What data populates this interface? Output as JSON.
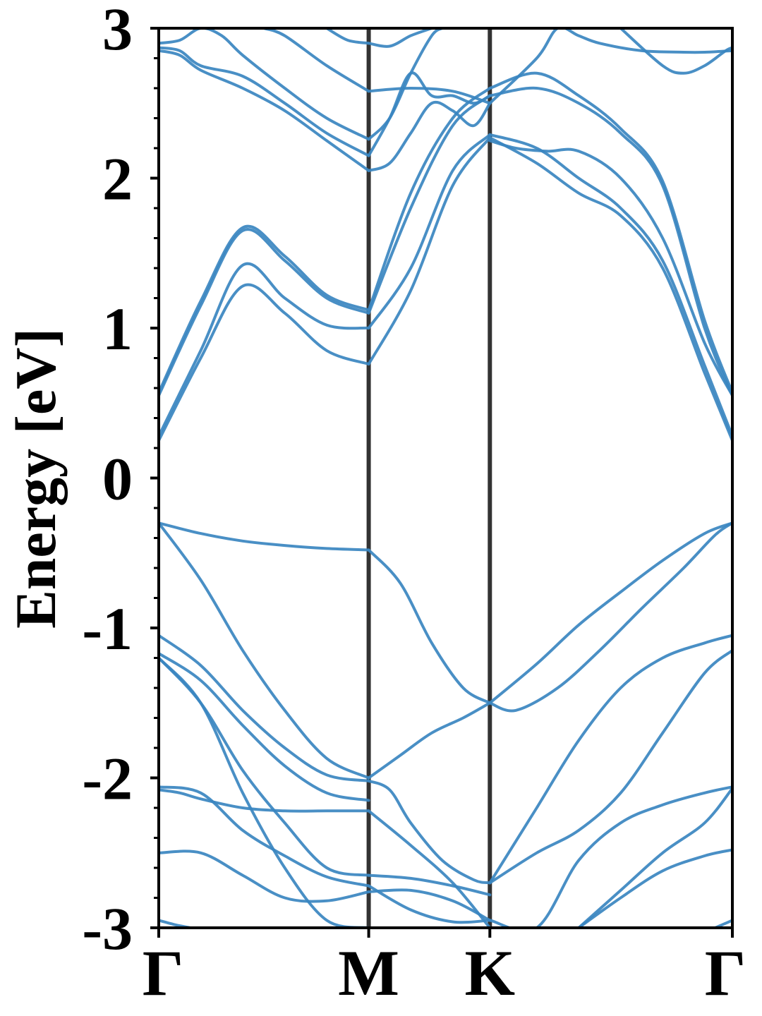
{
  "chart_data": {
    "type": "line",
    "ylabel": "Energy [eV]",
    "ylim": [
      -3,
      3
    ],
    "xlim": [
      0,
      2.732
    ],
    "yticks": [
      3,
      2,
      1,
      0,
      -1,
      -2,
      -3
    ],
    "ytick_labels": [
      "3",
      "2",
      "1",
      "0",
      "-1",
      "-2",
      "-3"
    ],
    "xticks": [
      {
        "pos": 0,
        "label": "Γ"
      },
      {
        "pos": 1,
        "label": "M"
      },
      {
        "pos": 1.577,
        "label": "K"
      },
      {
        "pos": 2.732,
        "label": "Γ"
      }
    ],
    "line_color": "#3a86c0",
    "vline_color": "#333333",
    "series": [
      {
        "x": [
          0,
          0.2,
          0.4,
          0.6,
          0.8,
          1
        ],
        "y": [
          -0.3,
          -0.37,
          -0.42,
          -0.45,
          -0.47,
          -0.48
        ]
      },
      {
        "x": [
          1,
          1.15,
          1.3,
          1.45,
          1.577
        ],
        "y": [
          -0.48,
          -0.7,
          -1.1,
          -1.4,
          -1.5
        ]
      },
      {
        "x": [
          1.577,
          1.8,
          2.0,
          2.2,
          2.4,
          2.6,
          2.732
        ],
        "y": [
          -1.5,
          -1.24,
          -0.98,
          -0.76,
          -0.55,
          -0.37,
          -0.3
        ]
      },
      {
        "x": [
          1.577,
          1.7,
          1.9,
          2.1,
          2.3,
          2.5,
          2.65,
          2.732
        ],
        "y": [
          -1.5,
          -1.55,
          -1.4,
          -1.15,
          -0.87,
          -0.6,
          -0.38,
          -0.3
        ]
      },
      {
        "x": [
          0,
          0.2,
          0.4,
          0.6,
          0.8,
          1
        ],
        "y": [
          -0.3,
          -0.68,
          -1.15,
          -1.55,
          -1.87,
          -2.0
        ]
      },
      {
        "x": [
          1,
          1.15,
          1.3,
          1.45,
          1.577
        ],
        "y": [
          -2.0,
          -1.85,
          -1.7,
          -1.6,
          -1.5
        ]
      },
      {
        "x": [
          0,
          0.2,
          0.4,
          0.6,
          0.8,
          1
        ],
        "y": [
          -1.05,
          -1.25,
          -1.55,
          -1.8,
          -1.98,
          -2.02
        ]
      },
      {
        "x": [
          0,
          0.2,
          0.4,
          0.6,
          0.8,
          1
        ],
        "y": [
          -1.17,
          -1.35,
          -1.65,
          -1.92,
          -2.1,
          -2.15
        ]
      },
      {
        "x": [
          1,
          1.1,
          1.2,
          1.35,
          1.5,
          1.577
        ],
        "y": [
          -2.02,
          -2.08,
          -2.3,
          -2.55,
          -2.68,
          -2.7
        ]
      },
      {
        "x": [
          1.577,
          1.8,
          2.0,
          2.2,
          2.4,
          2.6,
          2.732
        ],
        "y": [
          -2.7,
          -2.2,
          -1.75,
          -1.4,
          -1.2,
          -1.1,
          -1.05
        ]
      },
      {
        "x": [
          1.577,
          1.8,
          2.0,
          2.2,
          2.4,
          2.6,
          2.732
        ],
        "y": [
          -2.7,
          -2.5,
          -2.35,
          -2.1,
          -1.7,
          -1.3,
          -1.15
        ]
      },
      {
        "x": [
          0,
          0.2,
          0.4,
          0.6,
          0.8,
          1
        ],
        "y": [
          -1.2,
          -1.5,
          -1.95,
          -2.3,
          -2.6,
          -2.65
        ]
      },
      {
        "x": [
          1,
          1.2,
          1.4,
          1.577
        ],
        "y": [
          -2.65,
          -2.67,
          -2.72,
          -2.78
        ]
      },
      {
        "x": [
          0,
          0.1,
          0.2,
          0.4,
          0.6,
          0.8,
          1
        ],
        "y": [
          -2.08,
          -2.1,
          -2.14,
          -2.2,
          -2.22,
          -2.22,
          -2.22
        ]
      },
      {
        "x": [
          1,
          1.2,
          1.4,
          1.577
        ],
        "y": [
          -2.22,
          -2.45,
          -2.7,
          -3.0
        ]
      },
      {
        "x": [
          0,
          0.2,
          0.4,
          0.6,
          0.8,
          1
        ],
        "y": [
          -1.2,
          -1.5,
          -2.1,
          -2.6,
          -2.95,
          -3.0
        ]
      },
      {
        "x": [
          0,
          0.2,
          0.4,
          0.6,
          0.8,
          1
        ],
        "y": [
          -2.06,
          -2.1,
          -2.35,
          -2.52,
          -2.66,
          -2.72
        ]
      },
      {
        "x": [
          1,
          1.2,
          1.4,
          1.577
        ],
        "y": [
          -2.72,
          -2.88,
          -2.96,
          -2.95
        ]
      },
      {
        "x": [
          0,
          0.2,
          0.4,
          0.6,
          0.8,
          1
        ],
        "y": [
          -2.5,
          -2.5,
          -2.65,
          -2.8,
          -2.82,
          -2.76
        ]
      },
      {
        "x": [
          1,
          1.2,
          1.4,
          1.577
        ],
        "y": [
          -2.76,
          -2.75,
          -2.82,
          -2.95
        ]
      },
      {
        "x": [
          1.577,
          1.8,
          2.0,
          2.2,
          2.4,
          2.6,
          2.732
        ],
        "y": [
          -2.95,
          -3.0,
          -2.55,
          -2.3,
          -2.18,
          -2.1,
          -2.06
        ]
      },
      {
        "x": [
          2.0,
          2.2,
          2.4,
          2.6,
          2.732
        ],
        "y": [
          -3.0,
          -2.8,
          -2.62,
          -2.52,
          -2.48
        ]
      },
      {
        "x": [
          2.0,
          2.2,
          2.4,
          2.6,
          2.732
        ],
        "y": [
          -3.0,
          -2.75,
          -2.5,
          -2.3,
          -2.07
        ]
      },
      {
        "x": [
          0,
          0.2,
          0.4,
          0.6,
          0.8,
          1
        ],
        "y": [
          0.25,
          0.8,
          1.28,
          1.1,
          0.85,
          0.76
        ]
      },
      {
        "x": [
          1,
          1.2,
          1.4,
          1.577
        ],
        "y": [
          0.76,
          1.25,
          1.95,
          2.27
        ]
      },
      {
        "x": [
          0,
          0.2,
          0.4,
          0.6,
          0.8,
          1
        ],
        "y": [
          0.28,
          0.85,
          1.42,
          1.2,
          1.02,
          1.0
        ]
      },
      {
        "x": [
          1,
          1.2,
          1.4,
          1.577
        ],
        "y": [
          1.0,
          1.4,
          2.05,
          2.29
        ]
      },
      {
        "x": [
          0,
          0.2,
          0.4,
          0.6,
          0.8,
          1
        ],
        "y": [
          0.55,
          1.15,
          1.65,
          1.45,
          1.2,
          1.1
        ]
      },
      {
        "x": [
          1,
          1.2,
          1.4,
          1.577
        ],
        "y": [
          1.1,
          1.8,
          2.35,
          2.55
        ]
      },
      {
        "x": [
          0,
          0.2,
          0.4,
          0.6,
          0.8,
          1
        ],
        "y": [
          0.57,
          1.18,
          1.67,
          1.48,
          1.22,
          1.12
        ]
      },
      {
        "x": [
          1,
          1.2,
          1.4,
          1.577
        ],
        "y": [
          1.12,
          1.9,
          2.4,
          2.6
        ]
      },
      {
        "x": [
          1.577,
          1.8,
          2.0,
          2.2,
          2.4,
          2.6,
          2.732
        ],
        "y": [
          2.27,
          2.1,
          1.9,
          1.75,
          1.4,
          0.7,
          0.25
        ]
      },
      {
        "x": [
          1.577,
          1.8,
          2.0,
          2.2,
          2.4,
          2.6,
          2.732
        ],
        "y": [
          2.29,
          2.2,
          2.0,
          1.8,
          1.45,
          0.75,
          0.28
        ]
      },
      {
        "x": [
          1.577,
          1.8,
          2.0,
          2.2,
          2.4,
          2.6,
          2.732
        ],
        "y": [
          2.55,
          2.6,
          2.5,
          2.3,
          1.95,
          1.0,
          0.55
        ]
      },
      {
        "x": [
          1.577,
          1.8,
          2.0,
          2.2,
          2.4,
          2.6,
          2.732
        ],
        "y": [
          2.6,
          2.7,
          2.55,
          2.33,
          1.98,
          1.05,
          0.57
        ]
      },
      {
        "x": [
          1.577,
          1.7,
          1.85,
          2.0,
          2.2,
          2.4,
          2.6,
          2.732
        ],
        "y": [
          2.25,
          2.2,
          2.18,
          2.18,
          2.0,
          1.6,
          0.9,
          0.55
        ]
      },
      {
        "x": [
          0,
          0.1,
          0.2,
          0.4,
          0.6,
          0.8,
          1
        ],
        "y": [
          2.85,
          2.82,
          2.72,
          2.6,
          2.45,
          2.25,
          2.05
        ]
      },
      {
        "x": [
          1,
          1.1,
          1.2,
          1.3,
          1.4,
          1.5,
          1.577
        ],
        "y": [
          2.05,
          2.1,
          2.3,
          2.5,
          2.45,
          2.35,
          2.5
        ]
      },
      {
        "x": [
          0,
          0.1,
          0.2,
          0.4,
          0.6,
          0.8,
          1
        ],
        "y": [
          2.87,
          2.85,
          2.75,
          2.68,
          2.5,
          2.3,
          2.15
        ]
      },
      {
        "x": [
          1,
          1.1,
          1.2,
          1.3,
          1.4,
          1.5,
          1.577
        ],
        "y": [
          2.15,
          2.4,
          2.7,
          2.55,
          2.55,
          2.5,
          2.55
        ]
      },
      {
        "x": [
          0,
          0.1,
          0.2,
          0.3,
          0.4,
          0.6,
          0.8,
          1
        ],
        "y": [
          2.9,
          2.92,
          3.0,
          2.95,
          2.82,
          2.6,
          2.4,
          2.26
        ]
      },
      {
        "x": [
          1,
          1.1,
          1.2,
          1.3,
          1.35
        ],
        "y": [
          2.26,
          2.4,
          2.7,
          2.95,
          3.0
        ]
      },
      {
        "x": [
          0.5,
          0.6,
          0.8,
          1
        ],
        "y": [
          3.0,
          2.95,
          2.75,
          2.58
        ]
      },
      {
        "x": [
          1,
          1.2,
          1.4,
          1.577
        ],
        "y": [
          2.58,
          2.6,
          2.58,
          2.5
        ]
      },
      {
        "x": [
          0.8,
          0.9,
          1
        ],
        "y": [
          3.0,
          2.92,
          2.9
        ]
      },
      {
        "x": [
          1,
          1.1,
          1.2,
          1.3
        ],
        "y": [
          2.9,
          2.88,
          2.95,
          3.0
        ]
      },
      {
        "x": [
          1.577,
          1.8,
          1.9,
          2.0,
          2.1,
          2.3,
          2.5,
          2.6,
          2.732
        ],
        "y": [
          2.5,
          2.8,
          3.0,
          2.95,
          2.9,
          2.85,
          2.84,
          2.84,
          2.85
        ]
      },
      {
        "x": [
          2.2,
          2.4,
          2.5,
          2.6,
          2.7,
          2.732
        ],
        "y": [
          3.0,
          2.75,
          2.7,
          2.75,
          2.85,
          2.87
        ]
      },
      {
        "x": [
          0,
          0.08,
          0.15
        ],
        "y": [
          -2.95,
          -2.98,
          -3.0
        ]
      },
      {
        "x": [
          2.65,
          2.7,
          2.732
        ],
        "y": [
          -3.0,
          -2.97,
          -2.95
        ]
      }
    ]
  }
}
